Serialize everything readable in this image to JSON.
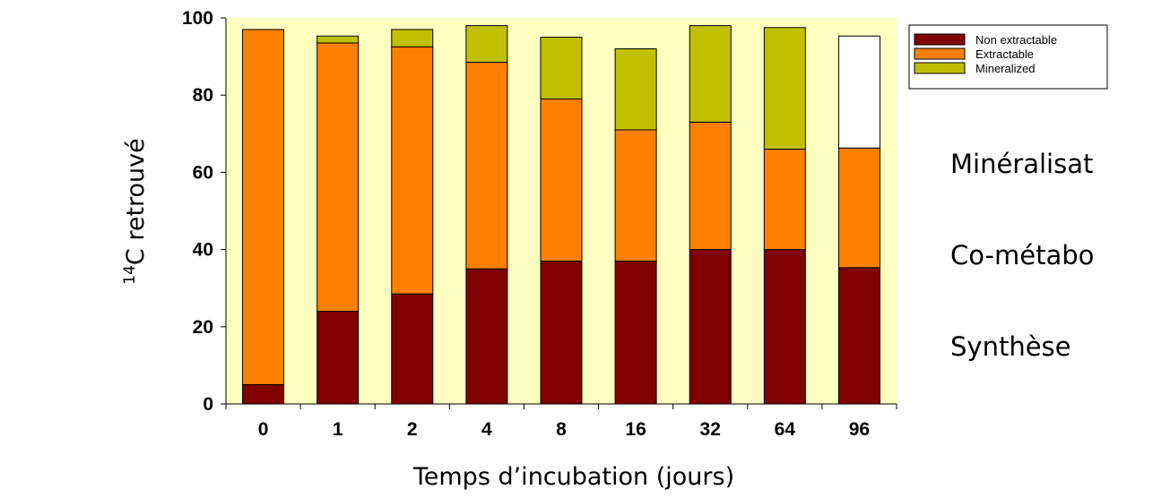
{
  "chart_data": {
    "type": "bar",
    "stacked": true,
    "categories": [
      "0",
      "1",
      "2",
      "4",
      "8",
      "16",
      "32",
      "64",
      "96"
    ],
    "series": [
      {
        "name": "Non extractable",
        "color": "#800000",
        "values": [
          5,
          24,
          28.5,
          35,
          37,
          37,
          40,
          40,
          35.3
        ]
      },
      {
        "name": "Extractable",
        "color": "#ff8000",
        "values": [
          92,
          69.5,
          64,
          53.5,
          42,
          34,
          33,
          26,
          31
        ]
      },
      {
        "name": "Mineralized",
        "color": "#c0c000",
        "values": [
          0,
          1.8,
          4.5,
          9.5,
          16,
          21,
          25,
          31.5,
          29
        ],
        "colors": [
          "#c0c000",
          "#c0c000",
          "#c0c000",
          "#c0c000",
          "#c0c000",
          "#c0c000",
          "#c0c000",
          "#c0c000",
          "#ffffff"
        ]
      }
    ],
    "xlabel": "Temps d’incubation (jours)",
    "ylabel_superscript": "14",
    "ylabel": "C retrouvé",
    "ylim": [
      0,
      100
    ],
    "yticks": [
      0,
      20,
      40,
      60,
      80,
      100
    ],
    "grid": false,
    "legend_position": "top-right",
    "plot_background": "#ffffc0"
  },
  "side_labels": [
    "Minéralisat",
    "Co-métabo",
    "Synthèse"
  ]
}
